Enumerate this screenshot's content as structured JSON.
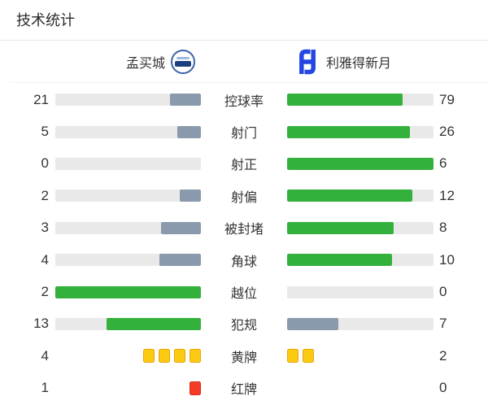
{
  "panel": {
    "title": "技术统计"
  },
  "teams": {
    "home": {
      "name": "孟买城",
      "logo": "mumbai-city-badge"
    },
    "away": {
      "name": "利雅得新月",
      "logo": "al-hilal-badge"
    }
  },
  "colors": {
    "green": "#34b13c",
    "slate": "#8b99ac",
    "track": "#e9e9e9",
    "yellow_card": "#fcca10",
    "red_card": "#f53b25",
    "hilal_blue": "#2446e1"
  },
  "stats": {
    "rows": [
      {
        "kind": "bar",
        "label": "控球率",
        "home": {
          "value": "21",
          "pct": 21,
          "tone": "slate"
        },
        "away": {
          "value": "79",
          "pct": 79,
          "tone": "green"
        }
      },
      {
        "kind": "bar",
        "label": "射门",
        "home": {
          "value": "5",
          "pct": 16.1,
          "tone": "slate"
        },
        "away": {
          "value": "26",
          "pct": 83.9,
          "tone": "green"
        }
      },
      {
        "kind": "bar",
        "label": "射正",
        "home": {
          "value": "0",
          "pct": 0,
          "tone": "slate"
        },
        "away": {
          "value": "6",
          "pct": 100,
          "tone": "green"
        }
      },
      {
        "kind": "bar",
        "label": "射偏",
        "home": {
          "value": "2",
          "pct": 14.3,
          "tone": "slate"
        },
        "away": {
          "value": "12",
          "pct": 85.7,
          "tone": "green"
        }
      },
      {
        "kind": "bar",
        "label": "被封堵",
        "home": {
          "value": "3",
          "pct": 27.3,
          "tone": "slate"
        },
        "away": {
          "value": "8",
          "pct": 72.7,
          "tone": "green"
        }
      },
      {
        "kind": "bar",
        "label": "角球",
        "home": {
          "value": "4",
          "pct": 28.6,
          "tone": "slate"
        },
        "away": {
          "value": "10",
          "pct": 71.4,
          "tone": "green"
        }
      },
      {
        "kind": "bar",
        "label": "越位",
        "home": {
          "value": "2",
          "pct": 100,
          "tone": "green"
        },
        "away": {
          "value": "0",
          "pct": 0,
          "tone": "slate"
        }
      },
      {
        "kind": "bar",
        "label": "犯规",
        "home": {
          "value": "13",
          "pct": 65,
          "tone": "green"
        },
        "away": {
          "value": "7",
          "pct": 35,
          "tone": "slate"
        }
      },
      {
        "kind": "cards",
        "card": "yellow",
        "label": "黄牌",
        "home": {
          "value": "4",
          "cards": 4
        },
        "away": {
          "value": "2",
          "cards": 2
        }
      },
      {
        "kind": "cards",
        "card": "red",
        "label": "红牌",
        "home": {
          "value": "1",
          "cards": 1
        },
        "away": {
          "value": "0",
          "cards": 0
        }
      }
    ]
  },
  "chart_data": {
    "type": "bar",
    "title": "技术统计",
    "orientation": "horizontal-mirrored",
    "categories": [
      "控球率",
      "射门",
      "射正",
      "射偏",
      "被封堵",
      "角球",
      "越位",
      "犯规",
      "黄牌",
      "红牌"
    ],
    "series": [
      {
        "name": "孟买城",
        "values": [
          21,
          5,
          0,
          2,
          3,
          4,
          2,
          13,
          4,
          1
        ]
      },
      {
        "name": "利雅得新月",
        "values": [
          79,
          26,
          6,
          12,
          8,
          10,
          0,
          7,
          2,
          0
        ]
      }
    ],
    "layout_hints": {
      "bar_fill_rule": "value / (home + away)",
      "leader_color": "#34b13c",
      "trailer_color": "#8b99ac",
      "cards_rendered_as_icons": [
        "黄牌",
        "红牌"
      ]
    }
  }
}
